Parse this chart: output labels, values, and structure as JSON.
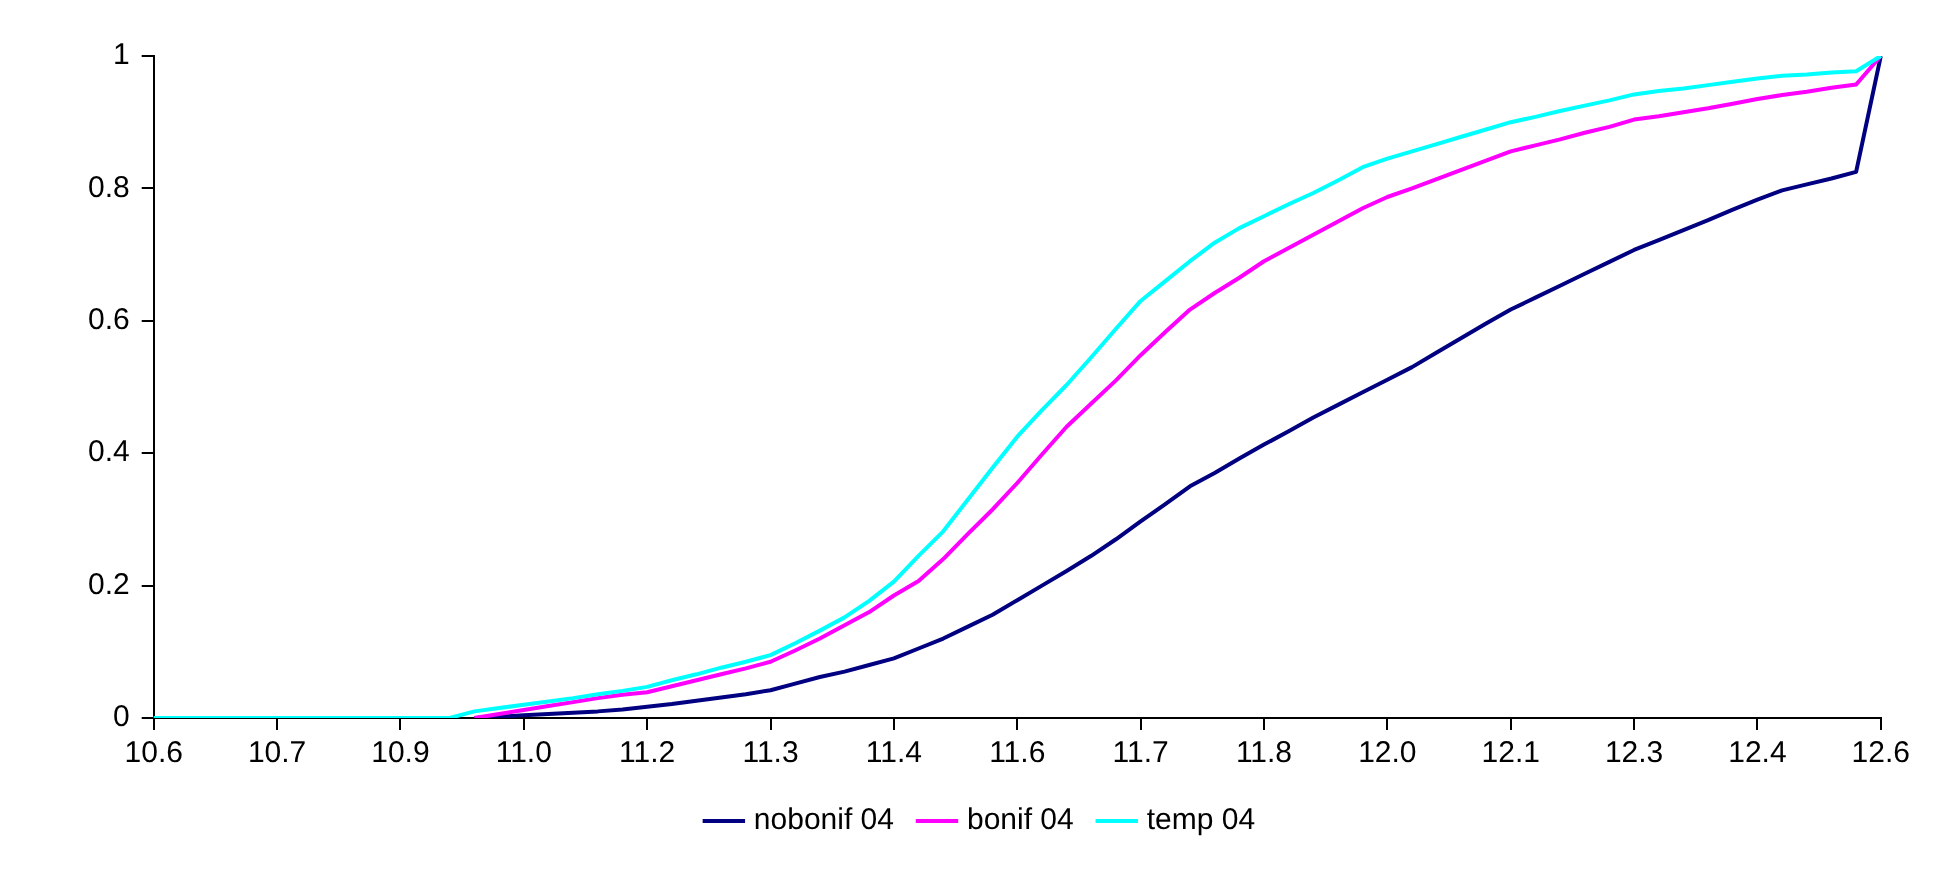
{
  "chart_data": {
    "type": "line",
    "ylim": [
      0,
      1
    ],
    "categories": [
      "10.6",
      null,
      null,
      null,
      null,
      "10.7",
      null,
      null,
      null,
      null,
      "10.9",
      null,
      null,
      null,
      null,
      "11.0",
      null,
      null,
      null,
      null,
      "11.2",
      null,
      null,
      null,
      null,
      "11.3",
      null,
      null,
      null,
      null,
      "11.4",
      null,
      null,
      null,
      null,
      "11.6",
      null,
      null,
      null,
      null,
      "11.7",
      null,
      null,
      null,
      null,
      "11.8",
      null,
      null,
      null,
      null,
      "12.0",
      null,
      null,
      null,
      null,
      "12.1",
      null,
      null,
      null,
      null,
      "12.3",
      null,
      null,
      null,
      null,
      "12.4",
      null,
      null,
      null,
      null,
      "12.6"
    ],
    "yticks": [
      0,
      0.2,
      0.4,
      0.6,
      0.8,
      1
    ],
    "grid": false,
    "legend": "bottom",
    "marker": "none",
    "line_style": "solid",
    "series": [
      {
        "name": "nobonif 04",
        "color": "#000080",
        "values": [
          null,
          null,
          null,
          null,
          null,
          null,
          null,
          null,
          null,
          null,
          null,
          null,
          null,
          0,
          0.002,
          0.004,
          0.006,
          0.008,
          0.01,
          0.013,
          0.017,
          0.021,
          0.026,
          0.031,
          0.036,
          0.042,
          0.052,
          0.062,
          0.07,
          0.08,
          0.09,
          0.105,
          0.12,
          0.138,
          0.156,
          0.178,
          0.2,
          0.222,
          0.245,
          0.27,
          0.297,
          0.323,
          0.35,
          0.37,
          0.392,
          0.413,
          0.433,
          0.454,
          0.473,
          0.492,
          0.511,
          0.53,
          0.552,
          0.574,
          0.596,
          0.617,
          0.635,
          0.653,
          0.671,
          0.689,
          0.707,
          0.722,
          0.737,
          0.752,
          0.768,
          0.783,
          0.797,
          0.806,
          0.815,
          0.825,
          1
        ]
      },
      {
        "name": "bonif 04",
        "color": "#ff00ff",
        "values": [
          null,
          null,
          null,
          null,
          null,
          null,
          null,
          null,
          null,
          null,
          null,
          null,
          null,
          0,
          0.006,
          0.012,
          0.018,
          0.024,
          0.03,
          0.035,
          0.039,
          0.048,
          0.057,
          0.066,
          0.075,
          0.085,
          0.102,
          0.12,
          0.14,
          0.16,
          0.185,
          0.207,
          0.24,
          0.278,
          0.315,
          0.355,
          0.398,
          0.44,
          0.475,
          0.51,
          0.548,
          0.583,
          0.617,
          0.642,
          0.665,
          0.69,
          0.71,
          0.73,
          0.75,
          0.77,
          0.787,
          0.8,
          0.814,
          0.828,
          0.842,
          0.856,
          0.865,
          0.874,
          0.884,
          0.893,
          0.904,
          0.909,
          0.915,
          0.921,
          0.928,
          0.935,
          0.941,
          0.946,
          0.952,
          0.957,
          1
        ]
      },
      {
        "name": "temp 04",
        "color": "#00ffff",
        "values": [
          0,
          0,
          0,
          0,
          0,
          0,
          0,
          0,
          0,
          0,
          0,
          0,
          0,
          0.01,
          0.015,
          0.02,
          0.025,
          0.03,
          0.036,
          0.041,
          0.047,
          0.057,
          0.066,
          0.076,
          0.085,
          0.095,
          0.113,
          0.132,
          0.152,
          0.177,
          0.206,
          0.245,
          0.282,
          0.33,
          0.378,
          0.425,
          0.465,
          0.503,
          0.545,
          0.588,
          0.63,
          0.66,
          0.69,
          0.718,
          0.74,
          0.758,
          0.776,
          0.793,
          0.812,
          0.832,
          0.845,
          0.856,
          0.867,
          0.878,
          0.889,
          0.9,
          0.908,
          0.917,
          0.925,
          0.933,
          0.942,
          0.947,
          0.951,
          0.956,
          0.961,
          0.966,
          0.97,
          0.972,
          0.975,
          0.977,
          1
        ]
      }
    ]
  }
}
